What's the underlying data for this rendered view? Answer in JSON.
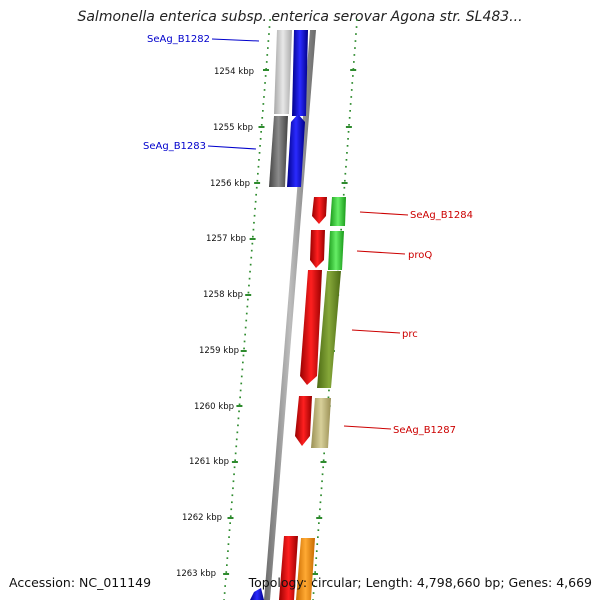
{
  "title": "Salmonella enterica subsp. enterica serovar Agona str. SL483...",
  "footer": {
    "accession": "Accession: NC_011149",
    "topology": "Topology: circular; Length: 4,798,660 bp; Genes: 4,669"
  },
  "colors": {
    "backbone": "#8a8a8a",
    "ruler": "#2e8b2e",
    "forward_label": "#0000cc",
    "reverse_label": "#cc0000"
  },
  "ruler_ticks": [
    {
      "label": "1254 kbp",
      "kbp": 1254
    },
    {
      "label": "1255 kbp",
      "kbp": 1255
    },
    {
      "label": "1256 kbp",
      "kbp": 1256
    },
    {
      "label": "1257 kbp",
      "kbp": 1257
    },
    {
      "label": "1258 kbp",
      "kbp": 1258
    },
    {
      "label": "1259 kbp",
      "kbp": 1259
    },
    {
      "label": "1260 kbp",
      "kbp": 1260
    },
    {
      "label": "1261 kbp",
      "kbp": 1261
    },
    {
      "label": "1262 kbp",
      "kbp": 1262
    },
    {
      "label": "1263 kbp",
      "kbp": 1263
    }
  ],
  "gene_labels": [
    {
      "name": "SeAg_B1282",
      "strand": "forward"
    },
    {
      "name": "SeAg_B1283",
      "strand": "forward"
    },
    {
      "name": "SeAg_B1284",
      "strand": "reverse"
    },
    {
      "name": "proQ",
      "strand": "reverse"
    },
    {
      "name": "prc",
      "strand": "reverse"
    },
    {
      "name": "SeAg_B1287",
      "strand": "reverse"
    }
  ]
}
